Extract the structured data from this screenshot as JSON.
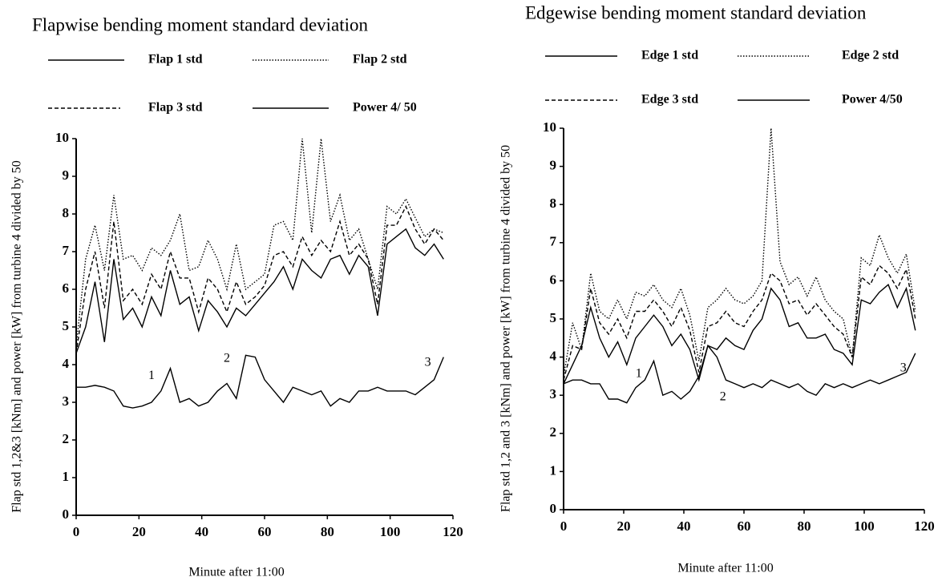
{
  "chart_data": [
    {
      "type": "line",
      "title": "Flapwise bending moment standard deviation",
      "xlabel": "Minute after 11:00",
      "ylabel": "Flap std 1,2&3 [kNm] and power [kW] from turbine 4 divided by 50",
      "x": [
        0,
        3,
        6,
        9,
        12,
        15,
        18,
        21,
        24,
        27,
        30,
        33,
        36,
        39,
        42,
        45,
        48,
        51,
        54,
        57,
        60,
        63,
        66,
        69,
        72,
        75,
        78,
        81,
        84,
        87,
        90,
        93,
        96,
        99,
        102,
        105,
        108,
        111,
        114,
        117
      ],
      "series": [
        {
          "name": "Flap 1 std",
          "color": "#000000",
          "style": "solid",
          "values": [
            4.3,
            5.0,
            6.2,
            4.6,
            6.8,
            5.2,
            5.5,
            5.0,
            5.8,
            5.3,
            6.5,
            5.6,
            5.8,
            4.9,
            5.7,
            5.4,
            5.0,
            5.5,
            5.3,
            5.6,
            5.9,
            6.2,
            6.6,
            6.0,
            6.8,
            6.5,
            6.3,
            6.8,
            6.9,
            6.4,
            6.9,
            6.6,
            5.3,
            7.2,
            7.4,
            7.6,
            7.1,
            6.9,
            7.2,
            6.8
          ]
        },
        {
          "name": "Flap 2 std",
          "color": "#000000",
          "style": "dotted",
          "values": [
            4.5,
            6.8,
            7.7,
            6.5,
            8.5,
            6.8,
            6.9,
            6.5,
            7.1,
            6.9,
            7.3,
            8.0,
            6.5,
            6.6,
            7.3,
            6.8,
            6.0,
            7.2,
            6.0,
            6.2,
            6.4,
            7.7,
            7.8,
            7.3,
            10,
            7.5,
            10,
            7.8,
            8.5,
            7.3,
            7.6,
            6.8,
            6.0,
            8.2,
            8.0,
            8.4,
            7.9,
            7.4,
            7.6,
            7.5
          ]
        },
        {
          "name": "Flap 3 std",
          "color": "#000000",
          "style": "dashed",
          "values": [
            4.3,
            6.0,
            7.0,
            5.5,
            7.8,
            5.7,
            6.0,
            5.6,
            6.4,
            6.0,
            7.0,
            6.3,
            6.3,
            5.4,
            6.3,
            6.0,
            5.4,
            6.2,
            5.6,
            5.8,
            6.1,
            6.9,
            7.0,
            6.6,
            7.4,
            6.9,
            7.3,
            7.0,
            7.8,
            6.9,
            7.2,
            6.8,
            5.6,
            7.7,
            7.7,
            8.2,
            7.6,
            7.2,
            7.6,
            7.3
          ]
        },
        {
          "name": "Power 4/ 50",
          "color": "#000000",
          "style": "solid",
          "values": [
            3.4,
            3.4,
            3.45,
            3.4,
            3.3,
            2.9,
            2.85,
            2.9,
            3.0,
            3.3,
            3.9,
            3.0,
            3.1,
            2.9,
            3.0,
            3.3,
            3.5,
            3.1,
            4.25,
            4.2,
            3.6,
            3.3,
            3.0,
            3.4,
            3.3,
            3.2,
            3.3,
            2.9,
            3.1,
            3.0,
            3.3,
            3.3,
            3.4,
            3.3,
            3.3,
            3.3,
            3.2,
            3.4,
            3.6,
            4.2
          ]
        }
      ],
      "annotations": [
        {
          "text": "1",
          "x": 24,
          "y": 3.7
        },
        {
          "text": "2",
          "x": 48,
          "y": 4.15
        },
        {
          "text": "3",
          "x": 112,
          "y": 4.05
        }
      ],
      "xlim": [
        0,
        120
      ],
      "xticks": [
        0,
        20,
        40,
        60,
        80,
        100,
        120
      ],
      "ylim": [
        0,
        10
      ],
      "yticks": [
        0,
        1,
        2,
        3,
        4,
        5,
        6,
        7,
        8,
        9,
        10
      ],
      "grid": false
    },
    {
      "type": "line",
      "title": "Edgewise bending moment standard deviation",
      "xlabel": "Minute after 11:00",
      "ylabel": "Flap std 1,2 and 3 [kNm] and power [kW] from turbine 4 divided by 50",
      "x": [
        0,
        3,
        6,
        9,
        12,
        15,
        18,
        21,
        24,
        27,
        30,
        33,
        36,
        39,
        42,
        45,
        48,
        51,
        54,
        57,
        60,
        63,
        66,
        69,
        72,
        75,
        78,
        81,
        84,
        87,
        90,
        93,
        96,
        99,
        102,
        105,
        108,
        111,
        114,
        117
      ],
      "series": [
        {
          "name": "Edge 1 std",
          "color": "#000000",
          "style": "solid",
          "values": [
            3.3,
            3.8,
            4.3,
            5.3,
            4.5,
            4.0,
            4.4,
            3.8,
            4.5,
            4.8,
            5.1,
            4.8,
            4.3,
            4.6,
            4.2,
            3.4,
            4.3,
            4.2,
            4.5,
            4.3,
            4.2,
            4.7,
            5.0,
            5.8,
            5.5,
            4.8,
            4.9,
            4.5,
            4.5,
            4.6,
            4.2,
            4.1,
            3.8,
            5.5,
            5.4,
            5.7,
            5.9,
            5.3,
            5.8,
            4.7
          ]
        },
        {
          "name": "Edge 2 std",
          "color": "#000000",
          "style": "dotted",
          "values": [
            3.5,
            4.9,
            4.2,
            6.2,
            5.2,
            5.0,
            5.5,
            5.0,
            5.7,
            5.6,
            5.9,
            5.5,
            5.3,
            5.8,
            5.1,
            3.9,
            5.3,
            5.5,
            5.8,
            5.5,
            5.4,
            5.6,
            6.0,
            10,
            6.5,
            5.9,
            6.1,
            5.6,
            6.1,
            5.5,
            5.2,
            5.0,
            4.0,
            6.6,
            6.4,
            7.2,
            6.6,
            6.2,
            6.7,
            5.2
          ]
        },
        {
          "name": "Edge 3 std",
          "color": "#000000",
          "style": "dashed",
          "values": [
            3.4,
            4.3,
            4.2,
            5.8,
            4.9,
            4.6,
            5.0,
            4.5,
            5.2,
            5.2,
            5.5,
            5.2,
            4.8,
            5.3,
            4.7,
            3.6,
            4.8,
            4.9,
            5.2,
            4.9,
            4.8,
            5.2,
            5.5,
            6.2,
            6.0,
            5.4,
            5.5,
            5.1,
            5.4,
            5.1,
            4.8,
            4.6,
            4.0,
            6.1,
            5.9,
            6.4,
            6.2,
            5.8,
            6.3,
            5.0
          ]
        },
        {
          "name": "Power 4/50",
          "color": "#000000",
          "style": "solid",
          "values": [
            3.3,
            3.4,
            3.4,
            3.3,
            3.3,
            2.9,
            2.9,
            2.8,
            3.2,
            3.4,
            3.9,
            3.0,
            3.1,
            2.9,
            3.1,
            3.5,
            4.3,
            4.0,
            3.4,
            3.3,
            3.2,
            3.3,
            3.2,
            3.4,
            3.3,
            3.2,
            3.3,
            3.1,
            3.0,
            3.3,
            3.2,
            3.3,
            3.2,
            3.3,
            3.4,
            3.3,
            3.4,
            3.5,
            3.6,
            4.1
          ]
        }
      ],
      "annotations": [
        {
          "text": "1",
          "x": 25,
          "y": 3.55
        },
        {
          "text": "2",
          "x": 53,
          "y": 2.95
        },
        {
          "text": "3",
          "x": 113,
          "y": 3.7
        }
      ],
      "xlim": [
        0,
        120
      ],
      "xticks": [
        0,
        20,
        40,
        60,
        80,
        100,
        120
      ],
      "ylim": [
        0,
        10
      ],
      "yticks": [
        0,
        1,
        2,
        3,
        4,
        5,
        6,
        7,
        8,
        9,
        10
      ],
      "grid": false
    }
  ]
}
